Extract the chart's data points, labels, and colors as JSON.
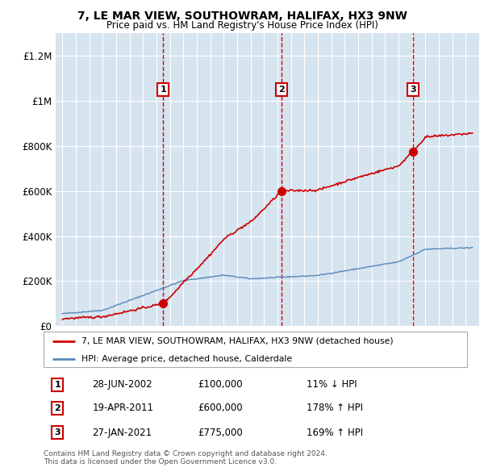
{
  "title": "7, LE MAR VIEW, SOUTHOWRAM, HALIFAX, HX3 9NW",
  "subtitle": "Price paid vs. HM Land Registry's House Price Index (HPI)",
  "bg_color": "#d6e4f0",
  "red_line_color": "#cc0000",
  "blue_line_color": "#5588bb",
  "dashed_line_color": "#cc0000",
  "transactions": [
    {
      "date": 2002.49,
      "price": 100000,
      "label": "1"
    },
    {
      "date": 2011.3,
      "price": 600000,
      "label": "2"
    },
    {
      "date": 2021.07,
      "price": 775000,
      "label": "3"
    }
  ],
  "transaction_labels_table": [
    {
      "num": "1",
      "date": "28-JUN-2002",
      "price": "£100,000",
      "hpi": "11% ↓ HPI"
    },
    {
      "num": "2",
      "date": "19-APR-2011",
      "price": "£600,000",
      "hpi": "178% ↑ HPI"
    },
    {
      "num": "3",
      "date": "27-JAN-2021",
      "price": "£775,000",
      "hpi": "169% ↑ HPI"
    }
  ],
  "ylim": [
    0,
    1300000
  ],
  "xlim": [
    1994.5,
    2026.0
  ],
  "yticks": [
    0,
    200000,
    400000,
    600000,
    800000,
    1000000,
    1200000
  ],
  "ytick_labels": [
    "£0",
    "£200K",
    "£400K",
    "£600K",
    "£800K",
    "£1M",
    "£1.2M"
  ],
  "footer": "Contains HM Land Registry data © Crown copyright and database right 2024.\nThis data is licensed under the Open Government Licence v3.0.",
  "legend_red_label": "7, LE MAR VIEW, SOUTHOWRAM, HALIFAX, HX3 9NW (detached house)",
  "legend_blue_label": "HPI: Average price, detached house, Calderdale"
}
